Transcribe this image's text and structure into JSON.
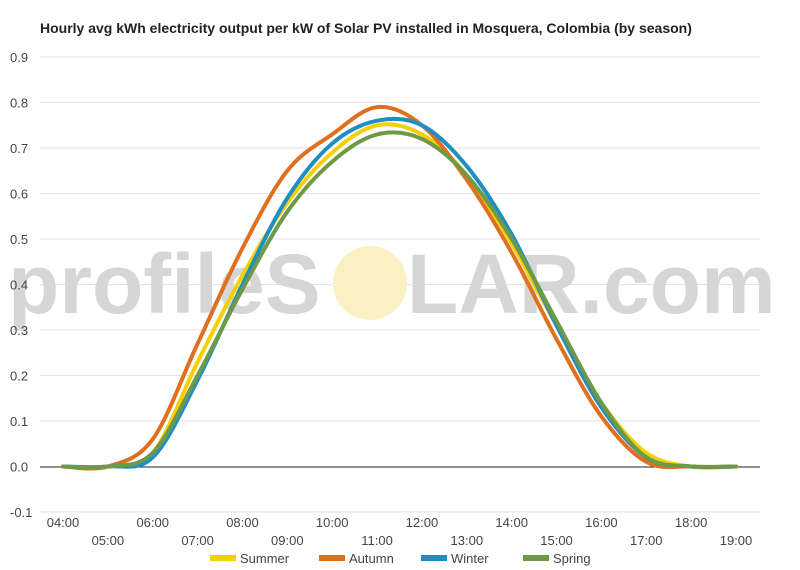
{
  "chart_data": {
    "type": "line",
    "title": "Hourly avg kWh electricity output per kW of Solar PV installed in Mosquera, Colombia (by season)",
    "watermark": {
      "left": "profileS",
      "right": "LAR.com"
    },
    "x": [
      "04:00",
      "05:00",
      "06:00",
      "07:00",
      "08:00",
      "09:00",
      "10:00",
      "11:00",
      "12:00",
      "13:00",
      "14:00",
      "15:00",
      "16:00",
      "17:00",
      "18:00",
      "19:00"
    ],
    "x_ticks_upper": [
      "04:00",
      "06:00",
      "08:00",
      "10:00",
      "12:00",
      "14:00",
      "16:00",
      "18:00"
    ],
    "x_ticks_lower": [
      "05:00",
      "07:00",
      "09:00",
      "11:00",
      "13:00",
      "15:00",
      "17:00",
      "19:00"
    ],
    "y_ticks": [
      "0.9",
      "0.8",
      "0.7",
      "0.6",
      "0.5",
      "0.4",
      "0.3",
      "0.2",
      "0.1",
      "0.0",
      "-0.1"
    ],
    "ylim": [
      -0.1,
      0.9
    ],
    "series": [
      {
        "name": "Summer",
        "color": "#f5d000",
        "values": [
          0.0,
          0.0,
          0.03,
          0.23,
          0.42,
          0.58,
          0.69,
          0.75,
          0.73,
          0.64,
          0.49,
          0.31,
          0.14,
          0.03,
          0.0,
          0.0
        ]
      },
      {
        "name": "Autumn",
        "color": "#e07020",
        "values": [
          0.0,
          0.0,
          0.06,
          0.27,
          0.48,
          0.65,
          0.73,
          0.79,
          0.75,
          0.63,
          0.47,
          0.28,
          0.11,
          0.01,
          0.0,
          0.0
        ]
      },
      {
        "name": "Winter",
        "color": "#1e8fc0",
        "values": [
          0.0,
          0.0,
          0.02,
          0.19,
          0.4,
          0.59,
          0.71,
          0.76,
          0.75,
          0.66,
          0.51,
          0.31,
          0.13,
          0.02,
          0.0,
          0.0
        ]
      },
      {
        "name": "Spring",
        "color": "#6e9a48",
        "values": [
          0.0,
          0.0,
          0.03,
          0.2,
          0.39,
          0.56,
          0.67,
          0.73,
          0.72,
          0.64,
          0.5,
          0.32,
          0.14,
          0.02,
          0.0,
          0.0
        ]
      }
    ],
    "legend_position": "bottom-center",
    "grid": true
  }
}
